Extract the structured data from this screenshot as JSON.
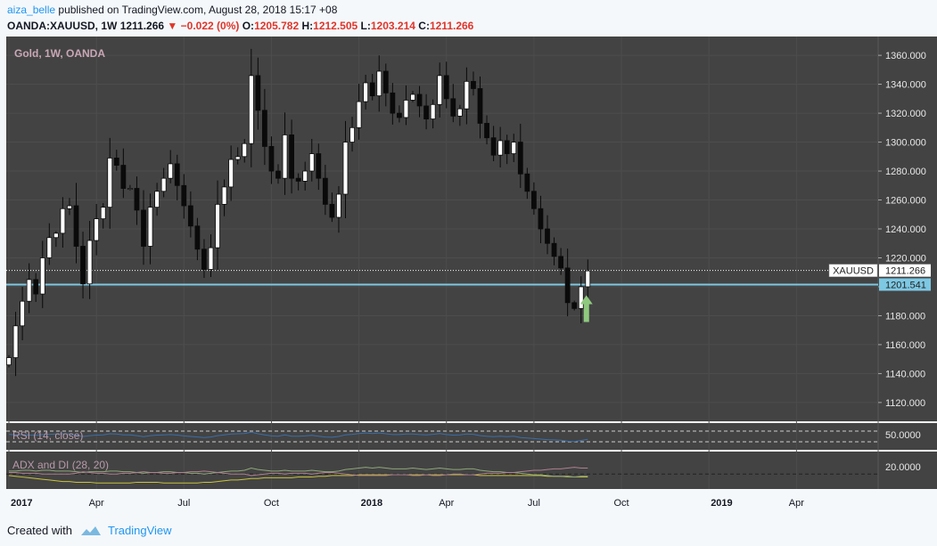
{
  "header": {
    "user": "aiza_belle",
    "published_text": "published on TradingView.com, August 28, 2018 15:17 +08",
    "symbol": "OANDA:XAUUSD, 1W",
    "last": "1211.266",
    "change": "−0.022 (0%)",
    "o_label": "O:",
    "o_value": "1205.782",
    "h_label": "H:",
    "h_value": "1212.505",
    "l_label": "L:",
    "l_value": "1203.214",
    "c_label": "C:",
    "c_value": "1211.266"
  },
  "footer": {
    "created_with": "Created with",
    "brand": "TradingView"
  },
  "colors": {
    "panel_bg": "#434343",
    "accent_line": "#7ec8e3",
    "arrow": "#8fc97f",
    "rsi_line": "#3b6ea8",
    "adx_line": "#c9c23c",
    "di_plus": "#8fa87a",
    "di_minus": "#b08090"
  },
  "chart_data": [
    {
      "type": "candlestick",
      "title": "Gold, 1W, OANDA",
      "symbol_tag": "XAUUSD",
      "last_price": 1211.266,
      "last_price_label": "1211.266",
      "hline_value": 1201.541,
      "hline_label": "1201.541",
      "ylim": [
        1107,
        1373
      ],
      "y_ticks": [
        "1120.000",
        "1140.000",
        "1160.000",
        "1180.000",
        "1200.000",
        "1220.000",
        "1240.000",
        "1260.000",
        "1280.000",
        "1300.000",
        "1320.000",
        "1340.000",
        "1360.000"
      ],
      "x_ticks": [
        {
          "label": "2017",
          "week": 0,
          "bold": true
        },
        {
          "label": "Apr",
          "week": 13,
          "bold": false
        },
        {
          "label": "Jul",
          "week": 26,
          "bold": false
        },
        {
          "label": "Oct",
          "week": 39,
          "bold": false
        },
        {
          "label": "2018",
          "week": 52,
          "bold": true
        },
        {
          "label": "Apr",
          "week": 65,
          "bold": false
        },
        {
          "label": "Jul",
          "week": 78,
          "bold": false
        },
        {
          "label": "Oct",
          "week": 91,
          "bold": false
        },
        {
          "label": "2019",
          "week": 104,
          "bold": true
        },
        {
          "label": "Apr",
          "week": 117,
          "bold": false
        }
      ],
      "closes": [
        1151,
        1173,
        1190,
        1205,
        1195,
        1220,
        1234,
        1237,
        1254,
        1256,
        1228,
        1202,
        1232,
        1247,
        1255,
        1289,
        1284,
        1268,
        1268,
        1253,
        1228,
        1255,
        1266,
        1275,
        1285,
        1270,
        1256,
        1242,
        1226,
        1212,
        1227,
        1257,
        1269,
        1288,
        1290,
        1299,
        1346,
        1322,
        1297,
        1280,
        1275,
        1305,
        1275,
        1273,
        1280,
        1292,
        1275,
        1257,
        1248,
        1264,
        1300,
        1310,
        1328,
        1341,
        1332,
        1349,
        1334,
        1320,
        1317,
        1329,
        1333,
        1325,
        1316,
        1326,
        1346,
        1330,
        1318,
        1323,
        1342,
        1337,
        1313,
        1303,
        1291,
        1301,
        1292,
        1300,
        1278,
        1266,
        1254,
        1240,
        1230,
        1221,
        1213,
        1189,
        1185,
        1200,
        1211
      ],
      "volatility": "high-low wicks approx 1.2x body",
      "arrow_annotation": {
        "week": 85,
        "direction": "up"
      }
    },
    {
      "type": "line",
      "title": "RSI (14, close)",
      "level_label": "50.0000",
      "ylim": [
        0,
        100
      ],
      "reference_levels": [
        70,
        30
      ],
      "values": [
        58,
        56,
        57,
        55,
        54,
        57,
        58,
        59,
        60,
        59,
        54,
        50,
        53,
        55,
        56,
        60,
        59,
        56,
        56,
        53,
        49,
        53,
        55,
        56,
        57,
        55,
        52,
        50,
        48,
        46,
        48,
        53,
        56,
        59,
        60,
        61,
        66,
        60,
        56,
        52,
        51,
        56,
        51,
        51,
        52,
        54,
        51,
        48,
        47,
        50,
        56,
        58,
        61,
        63,
        61,
        63,
        60,
        57,
        57,
        59,
        59,
        57,
        56,
        58,
        61,
        57,
        55,
        56,
        59,
        58,
        53,
        51,
        49,
        51,
        49,
        51,
        46,
        44,
        42,
        40,
        38,
        37,
        36,
        32,
        31,
        35,
        39
      ]
    },
    {
      "type": "line",
      "title": "ADX and DI (28, 20)",
      "level_label": "20.0000",
      "ylim": [
        0,
        50
      ],
      "reference_levels": [
        20
      ],
      "series": [
        {
          "name": "ADX",
          "values": [
            18,
            17,
            16,
            15,
            14,
            13,
            12,
            11,
            10,
            10,
            9,
            9,
            9,
            8,
            8,
            8,
            8,
            8,
            8,
            9,
            9,
            9,
            9,
            8,
            8,
            8,
            8,
            8,
            8,
            9,
            9,
            10,
            11,
            12,
            12,
            13,
            14,
            14,
            15,
            15,
            15,
            15,
            15,
            16,
            16,
            16,
            17,
            17,
            18,
            18,
            18,
            18,
            19,
            19,
            19,
            19,
            19,
            19,
            19,
            19,
            19,
            19,
            19,
            19,
            19,
            19,
            19,
            19,
            19,
            19,
            18,
            18,
            18,
            18,
            18,
            18,
            18,
            18,
            18,
            18,
            17,
            17,
            17,
            17,
            16,
            16,
            16
          ]
        },
        {
          "name": "DI+",
          "values": [
            24,
            24,
            25,
            25,
            24,
            25,
            25,
            24,
            24,
            24,
            23,
            22,
            23,
            23,
            23,
            24,
            24,
            23,
            23,
            22,
            21,
            22,
            22,
            23,
            23,
            22,
            22,
            21,
            21,
            20,
            21,
            22,
            23,
            24,
            24,
            25,
            28,
            26,
            25,
            24,
            24,
            25,
            24,
            24,
            24,
            25,
            24,
            23,
            23,
            24,
            26,
            27,
            28,
            29,
            28,
            29,
            28,
            27,
            27,
            27,
            28,
            27,
            26,
            27,
            28,
            27,
            26,
            26,
            27,
            27,
            25,
            24,
            23,
            23,
            22,
            22,
            21,
            20,
            19,
            19,
            18,
            17,
            17,
            16,
            16,
            17,
            17
          ]
        },
        {
          "name": "DI-",
          "values": [
            22,
            22,
            21,
            21,
            21,
            20,
            20,
            20,
            20,
            20,
            21,
            23,
            22,
            21,
            21,
            20,
            20,
            21,
            21,
            22,
            23,
            22,
            22,
            21,
            21,
            22,
            22,
            23,
            23,
            24,
            23,
            22,
            21,
            20,
            20,
            20,
            18,
            19,
            20,
            21,
            21,
            20,
            21,
            21,
            21,
            20,
            21,
            22,
            22,
            21,
            20,
            19,
            18,
            18,
            18,
            18,
            18,
            19,
            19,
            19,
            18,
            18,
            19,
            18,
            18,
            19,
            20,
            20,
            19,
            19,
            20,
            21,
            21,
            21,
            22,
            22,
            23,
            24,
            25,
            25,
            26,
            27,
            27,
            28,
            29,
            28,
            28
          ]
        }
      ]
    }
  ]
}
